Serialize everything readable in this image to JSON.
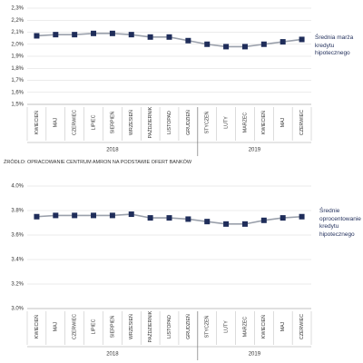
{
  "chart_data": [
    {
      "type": "line",
      "categories": [
        "KWIECIEŃ",
        "MAJ",
        "CZERWIEC",
        "LIPIEC",
        "SIERPIEŃ",
        "WRZESIEŃ",
        "PAŹDZIERNIK",
        "LISTOPAD",
        "GRUDZIEŃ",
        "STYCZEŃ",
        "LUTY",
        "MARZEC",
        "KWIECIEŃ",
        "MAJ",
        "CZERWIEC"
      ],
      "year_labels": [
        "2018",
        "2019"
      ],
      "series": [
        {
          "name": "Średnia marża kredytu hipotecznego",
          "line_color": "#9aa0ab",
          "color": "#1f2d5a",
          "values": [
            2.07,
            2.08,
            2.08,
            2.09,
            2.09,
            2.08,
            2.06,
            2.06,
            2.03,
            2.0,
            1.98,
            1.98,
            2.0,
            2.02,
            2.04
          ]
        }
      ],
      "ylim": [
        1.5,
        2.3
      ],
      "yticks": [
        {
          "value": 1.5,
          "label": "1,5%"
        },
        {
          "value": 1.6,
          "label": "1,6%"
        },
        {
          "value": 1.7,
          "label": "1,7%"
        },
        {
          "value": 1.8,
          "label": "1,8%"
        },
        {
          "value": 1.9,
          "label": "1,9%"
        },
        {
          "value": 2.0,
          "label": "2,0%"
        },
        {
          "value": 2.1,
          "label": "2,1%"
        },
        {
          "value": 2.2,
          "label": "2,2%"
        },
        {
          "value": 2.3,
          "label": "2,3%"
        }
      ],
      "grid": true,
      "note": "ŹRÓDŁO: OPRACOWANIE CENTRUM AMRON NA PODSTAWIE OFERT BANKÓW"
    },
    {
      "type": "line",
      "categories": [
        "KWIECIEŃ",
        "MAJ",
        "CZERWIEC",
        "LIPIEC",
        "SIERPIEŃ",
        "WRZESIEŃ",
        "PAŹDZIERNIK",
        "LISTOPAD",
        "GRUDZIEŃ",
        "STYCZEŃ",
        "LUTY",
        "MARZEC",
        "KWIECIEŃ",
        "MAJ",
        "CZERWIEC"
      ],
      "year_labels": [
        "2018",
        "2019"
      ],
      "series": [
        {
          "name": "Średnie oprocentowanie kredytu hipotecznego",
          "line_color": "#9aa0ab",
          "color": "#1f2d5a",
          "values": [
            3.75,
            3.76,
            3.76,
            3.76,
            3.76,
            3.77,
            3.74,
            3.74,
            3.73,
            3.71,
            3.69,
            3.69,
            3.72,
            3.74,
            3.75
          ]
        }
      ],
      "ylim": [
        3.0,
        4.0
      ],
      "yticks": [
        {
          "value": 3.0,
          "label": "3.0%"
        },
        {
          "value": 3.2,
          "label": "3.2%"
        },
        {
          "value": 3.4,
          "label": "3.4%"
        },
        {
          "value": 3.6,
          "label": "3.6%"
        },
        {
          "value": 3.8,
          "label": "3.8%"
        },
        {
          "value": 4.0,
          "label": "4.0%"
        }
      ],
      "grid": true
    }
  ]
}
